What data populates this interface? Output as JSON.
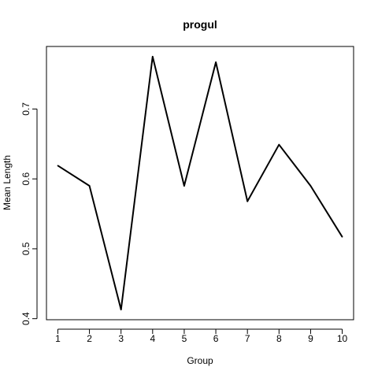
{
  "chart_data": {
    "type": "line",
    "title": "progul",
    "xlabel": "Group",
    "ylabel": "Mean Length",
    "x": [
      1,
      2,
      3,
      4,
      5,
      6,
      7,
      8,
      9,
      10
    ],
    "y": [
      0.619,
      0.59,
      0.413,
      0.775,
      0.59,
      0.767,
      0.568,
      0.649,
      0.59,
      0.517
    ],
    "xticks": [
      "1",
      "2",
      "3",
      "4",
      "5",
      "6",
      "7",
      "8",
      "9",
      "10"
    ],
    "yticks": [
      "0.4",
      "0.5",
      "0.6",
      "0.7"
    ],
    "ytick_values": [
      0.4,
      0.5,
      0.6,
      0.7
    ],
    "xlim": [
      0.64,
      10.36
    ],
    "ylim": [
      0.3985,
      0.7895
    ],
    "grid": false,
    "line_color": "#000000"
  }
}
